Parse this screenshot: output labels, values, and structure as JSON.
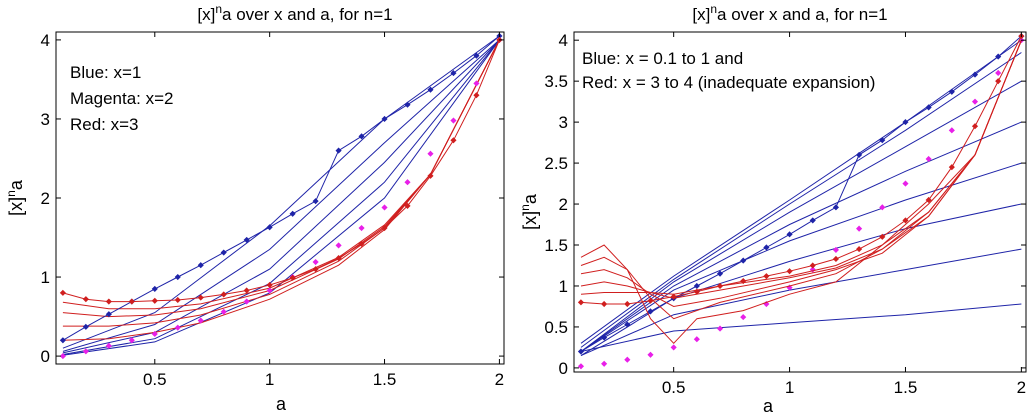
{
  "colors": {
    "blue": "#1f24a8",
    "magenta": "#e820e8",
    "red": "#d01f1f",
    "frame": "#000000"
  },
  "chart_data": [
    {
      "type": "line",
      "title": "[x]^n a over x and a, for n=1",
      "title_base": "[x]",
      "title_sup": "n",
      "title_rest": "a over x and a, for n=1",
      "xlabel": "a",
      "ylabel": "[x]^n a",
      "ylabel_base": "[x]",
      "ylabel_sup": "n",
      "ylabel_rest": "a",
      "xlim": [
        0.07,
        2.02
      ],
      "ylim": [
        -0.1,
        4.1
      ],
      "xticks": [
        0.5,
        1,
        1.5,
        2
      ],
      "xtick_labels": [
        "0.5",
        "1",
        "1.5",
        "2"
      ],
      "yticks": [
        0,
        1,
        2,
        3,
        4
      ],
      "ytick_labels": [
        "0",
        "1",
        "2",
        "3",
        "4"
      ],
      "grid": false,
      "legend_placement": "top-left",
      "legend": [
        "Blue: x=1",
        "Magenta: x=2",
        "Red: x=3"
      ],
      "series": [
        {
          "color": "blue",
          "style": "line",
          "x": [
            0.1,
            0.5,
            1,
            1.5,
            2
          ],
          "y": [
            0.1,
            0.55,
            1.65,
            3.0,
            4.05
          ]
        },
        {
          "color": "blue",
          "style": "line",
          "x": [
            0.1,
            0.5,
            1,
            1.5,
            2
          ],
          "y": [
            0.06,
            0.4,
            1.35,
            2.7,
            4.0
          ]
        },
        {
          "color": "blue",
          "style": "line",
          "x": [
            0.1,
            0.5,
            1,
            1.5,
            2
          ],
          "y": [
            0.04,
            0.3,
            1.1,
            2.45,
            4.0
          ]
        },
        {
          "color": "blue",
          "style": "line",
          "x": [
            0.1,
            0.5,
            1,
            1.5,
            2
          ],
          "y": [
            0.02,
            0.22,
            0.92,
            2.2,
            4.0
          ]
        },
        {
          "color": "blue",
          "style": "line",
          "x": [
            0.1,
            0.5,
            1,
            1.5,
            2
          ],
          "y": [
            0.01,
            0.18,
            0.8,
            2.0,
            4.0
          ]
        },
        {
          "color": "red",
          "style": "line",
          "x": [
            0.1,
            0.3,
            0.5,
            0.7,
            1,
            1.3,
            1.5,
            1.7,
            2
          ],
          "y": [
            0.2,
            0.22,
            0.3,
            0.42,
            0.72,
            1.15,
            1.6,
            2.3,
            4.0
          ]
        },
        {
          "color": "red",
          "style": "line",
          "x": [
            0.1,
            0.3,
            0.5,
            0.7,
            1,
            1.3,
            1.5,
            1.7,
            2
          ],
          "y": [
            0.38,
            0.38,
            0.42,
            0.52,
            0.78,
            1.2,
            1.62,
            2.3,
            4.0
          ]
        },
        {
          "color": "red",
          "style": "line",
          "x": [
            0.1,
            0.3,
            0.5,
            0.7,
            1,
            1.3,
            1.5,
            1.7,
            2
          ],
          "y": [
            0.55,
            0.5,
            0.52,
            0.6,
            0.83,
            1.23,
            1.64,
            2.3,
            4.0
          ]
        },
        {
          "color": "red",
          "style": "line",
          "x": [
            0.1,
            0.3,
            0.5,
            0.7,
            1,
            1.3,
            1.5,
            1.7,
            2
          ],
          "y": [
            0.68,
            0.6,
            0.6,
            0.66,
            0.86,
            1.25,
            1.66,
            2.3,
            4.0
          ]
        },
        {
          "color": "blue",
          "style": "markers-line",
          "x": [
            0.1,
            0.2,
            0.3,
            0.4,
            0.5,
            0.6,
            0.7,
            0.8,
            0.9,
            1.0,
            1.1,
            1.2,
            1.3,
            1.4,
            1.5,
            1.6,
            1.7,
            1.8,
            1.9,
            2.0
          ],
          "y": [
            0.2,
            0.37,
            0.53,
            0.69,
            0.85,
            1.0,
            1.15,
            1.31,
            1.47,
            1.63,
            1.8,
            1.96,
            2.6,
            2.78,
            3.0,
            3.18,
            3.37,
            3.58,
            3.8,
            4.05
          ]
        },
        {
          "color": "magenta",
          "style": "markers",
          "x": [
            0.1,
            0.2,
            0.3,
            0.4,
            0.5,
            0.6,
            0.7,
            0.8,
            0.9,
            1.0,
            1.1,
            1.2,
            1.3,
            1.4,
            1.5,
            1.6,
            1.7,
            1.8,
            1.9,
            2.0
          ],
          "y": [
            0.0,
            0.06,
            0.13,
            0.2,
            0.28,
            0.36,
            0.45,
            0.56,
            0.69,
            0.83,
            1.0,
            1.19,
            1.4,
            1.62,
            1.88,
            2.2,
            2.56,
            2.98,
            3.45,
            4.0
          ]
        },
        {
          "color": "red",
          "style": "markers-line",
          "x": [
            0.1,
            0.2,
            0.3,
            0.4,
            0.5,
            0.6,
            0.7,
            0.8,
            0.9,
            1.0,
            1.1,
            1.2,
            1.3,
            1.4,
            1.5,
            1.6,
            1.7,
            1.8,
            1.9,
            2.0
          ],
          "y": [
            0.8,
            0.72,
            0.69,
            0.69,
            0.7,
            0.71,
            0.74,
            0.78,
            0.83,
            0.9,
            0.99,
            1.1,
            1.24,
            1.42,
            1.62,
            1.9,
            2.28,
            2.73,
            3.3,
            4.0
          ]
        }
      ]
    },
    {
      "type": "line",
      "title": "[x]^n a over x and a, for n=1",
      "title_base": "[x]",
      "title_sup": "n",
      "title_rest": "a over x and a, for n=1",
      "xlabel": "a",
      "ylabel": "[x]^n a",
      "ylabel_base": "[x]",
      "ylabel_sup": "n",
      "ylabel_rest": "a",
      "xlim": [
        0.07,
        2.02
      ],
      "ylim": [
        -0.05,
        4.1
      ],
      "xticks": [
        0.5,
        1,
        1.5,
        2
      ],
      "xtick_labels": [
        "0.5",
        "1",
        "1.5",
        "2"
      ],
      "yticks": [
        0,
        0.5,
        1,
        1.5,
        2,
        2.5,
        3,
        3.5,
        4
      ],
      "ytick_labels": [
        "0",
        "0.5",
        "1",
        "1.5",
        "2",
        "2.5",
        "3",
        "3.5",
        "4"
      ],
      "grid": false,
      "legend_placement": "top-left",
      "legend": [
        "Blue: x = 0.1 to 1 and",
        "Red: x = 3 to 4 (inadequate expansion)"
      ],
      "series": [
        {
          "color": "blue",
          "style": "line",
          "x": [
            0.1,
            0.5,
            1,
            1.5,
            2
          ],
          "y": [
            0.2,
            0.45,
            0.55,
            0.65,
            0.78
          ]
        },
        {
          "color": "blue",
          "style": "line",
          "x": [
            0.1,
            0.5,
            1,
            1.5,
            2
          ],
          "y": [
            0.15,
            0.65,
            0.95,
            1.2,
            1.45
          ]
        },
        {
          "color": "blue",
          "style": "line",
          "x": [
            0.1,
            0.5,
            1,
            1.5,
            2
          ],
          "y": [
            0.15,
            0.85,
            1.3,
            1.7,
            2.0
          ]
        },
        {
          "color": "blue",
          "style": "line",
          "x": [
            0.1,
            0.5,
            1,
            1.5,
            2
          ],
          "y": [
            0.2,
            0.95,
            1.55,
            2.05,
            2.5
          ]
        },
        {
          "color": "blue",
          "style": "line",
          "x": [
            0.1,
            0.5,
            1,
            1.5,
            2
          ],
          "y": [
            0.2,
            1.0,
            1.75,
            2.4,
            3.0
          ]
        },
        {
          "color": "blue",
          "style": "line",
          "x": [
            0.1,
            0.5,
            1,
            1.5,
            2
          ],
          "y": [
            0.2,
            1.05,
            1.9,
            2.7,
            3.5
          ]
        },
        {
          "color": "blue",
          "style": "line",
          "x": [
            0.1,
            0.5,
            1,
            1.5,
            2
          ],
          "y": [
            0.25,
            1.08,
            2.0,
            2.9,
            3.85
          ]
        },
        {
          "color": "blue",
          "style": "line",
          "x": [
            0.1,
            0.5,
            1,
            1.5,
            2
          ],
          "y": [
            0.3,
            1.12,
            2.05,
            3.0,
            4.0
          ]
        },
        {
          "color": "blue",
          "style": "markers-line",
          "x": [
            0.1,
            0.2,
            0.3,
            0.4,
            0.5,
            0.6,
            0.7,
            0.8,
            0.9,
            1.0,
            1.1,
            1.2,
            1.3,
            1.4,
            1.5,
            1.6,
            1.7,
            1.8,
            1.9,
            2.0
          ],
          "y": [
            0.2,
            0.37,
            0.53,
            0.69,
            0.85,
            1.0,
            1.15,
            1.31,
            1.47,
            1.63,
            1.8,
            1.96,
            2.6,
            2.78,
            3.0,
            3.18,
            3.37,
            3.58,
            3.8,
            4.05
          ]
        },
        {
          "color": "magenta",
          "style": "markers",
          "x": [
            0.1,
            0.2,
            0.3,
            0.4,
            0.5,
            0.6,
            0.7,
            0.8,
            0.9,
            1.0,
            1.1,
            1.2,
            1.3,
            1.4,
            1.5,
            1.6,
            1.7,
            1.8,
            1.9,
            2.0
          ],
          "y": [
            0.02,
            0.05,
            0.1,
            0.16,
            0.25,
            0.35,
            0.48,
            0.62,
            0.78,
            0.98,
            1.2,
            1.44,
            1.7,
            1.96,
            2.25,
            2.55,
            2.9,
            3.25,
            3.6,
            4.0
          ]
        },
        {
          "color": "red",
          "style": "line",
          "x": [
            0.1,
            0.2,
            0.3,
            0.4,
            0.5,
            0.6,
            0.8,
            1.0,
            1.2,
            1.4,
            1.6,
            1.8,
            1.9,
            2.0
          ],
          "y": [
            1.35,
            1.5,
            1.2,
            0.6,
            0.3,
            0.6,
            0.7,
            0.9,
            1.05,
            1.5,
            2.0,
            2.6,
            3.3,
            4.0
          ]
        },
        {
          "color": "red",
          "style": "line",
          "x": [
            0.1,
            0.2,
            0.3,
            0.4,
            0.5,
            0.7,
            1.0,
            1.2,
            1.4,
            1.6,
            1.8,
            1.9,
            2.0
          ],
          "y": [
            1.25,
            1.35,
            1.2,
            0.85,
            0.6,
            0.8,
            1.0,
            1.15,
            1.45,
            1.9,
            2.6,
            3.3,
            4.0
          ]
        },
        {
          "color": "red",
          "style": "line",
          "x": [
            0.1,
            0.2,
            0.3,
            0.4,
            0.5,
            0.7,
            1.0,
            1.2,
            1.4,
            1.6,
            1.8,
            1.9,
            2.0
          ],
          "y": [
            1.15,
            1.2,
            1.1,
            0.9,
            0.75,
            0.85,
            1.05,
            1.2,
            1.4,
            1.85,
            2.6,
            3.3,
            4.0
          ]
        },
        {
          "color": "red",
          "style": "line",
          "x": [
            0.1,
            0.2,
            0.3,
            0.4,
            0.5,
            0.7,
            1.0,
            1.2,
            1.4,
            1.6,
            1.8,
            1.9,
            2.0
          ],
          "y": [
            1.0,
            1.05,
            1.0,
            0.92,
            0.85,
            0.95,
            1.1,
            1.22,
            1.45,
            1.85,
            2.6,
            3.3,
            4.0
          ]
        },
        {
          "color": "red",
          "style": "line",
          "x": [
            0.1,
            0.2,
            0.3,
            0.4,
            0.5,
            0.7,
            1.0,
            1.2,
            1.4,
            1.6,
            1.8,
            1.9,
            2.0
          ],
          "y": [
            0.9,
            0.92,
            0.92,
            0.92,
            0.9,
            1.0,
            1.12,
            1.25,
            1.5,
            1.9,
            2.6,
            3.3,
            4.0
          ]
        },
        {
          "color": "red",
          "style": "markers-line",
          "x": [
            0.1,
            0.2,
            0.3,
            0.4,
            0.5,
            0.6,
            0.7,
            0.8,
            0.9,
            1.0,
            1.1,
            1.2,
            1.3,
            1.4,
            1.5,
            1.6,
            1.7,
            1.8,
            1.9,
            2.0
          ],
          "y": [
            0.8,
            0.78,
            0.78,
            0.82,
            0.87,
            0.93,
            1.0,
            1.06,
            1.12,
            1.18,
            1.25,
            1.33,
            1.45,
            1.6,
            1.8,
            2.05,
            2.45,
            2.95,
            3.5,
            4.05
          ]
        }
      ]
    }
  ]
}
